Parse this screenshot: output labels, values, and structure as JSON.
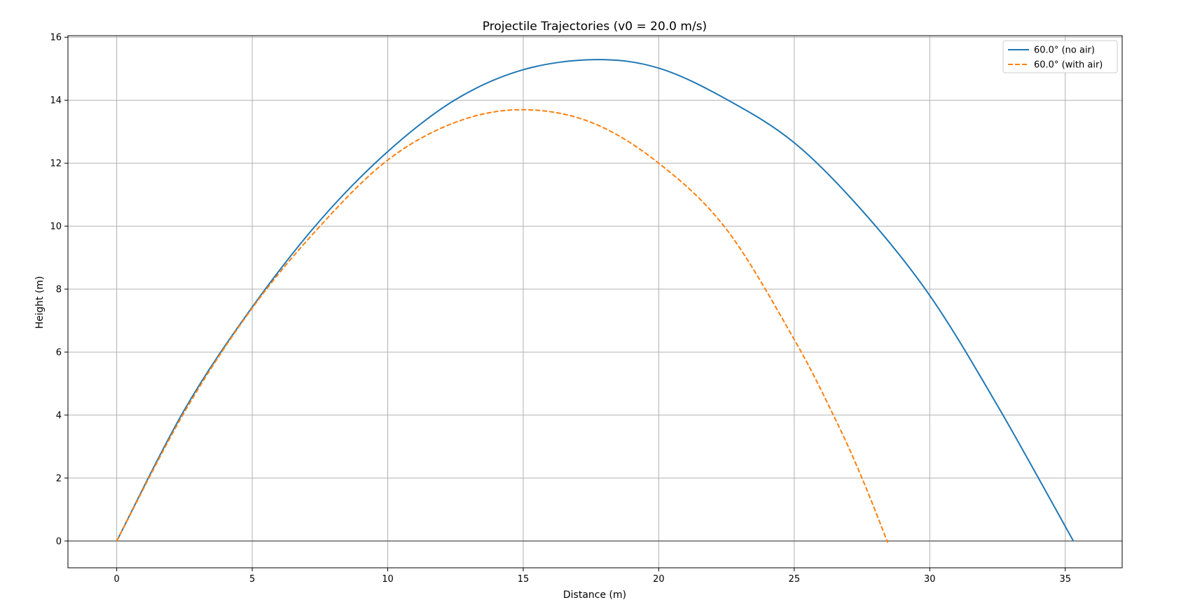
{
  "chart_data": {
    "type": "line",
    "title": "Projectile Trajectories (v0 = 20.0 m/s)",
    "xlabel": "Distance (m)",
    "ylabel": "Height (m)",
    "xlim": [
      -1.8,
      37.1
    ],
    "ylim": [
      -0.85,
      16.05
    ],
    "xticks": [
      0,
      5,
      10,
      15,
      20,
      25,
      30,
      35
    ],
    "yticks": [
      0,
      2,
      4,
      6,
      8,
      10,
      12,
      14,
      16
    ],
    "grid": true,
    "legend_position": "top-right",
    "reference_line_y": 0,
    "series": [
      {
        "name": "60.0° (no air)",
        "color": "#1f77b4",
        "style": "solid",
        "x": [
          0,
          2.5,
          5,
          7.5,
          10,
          12.5,
          15,
          17.66,
          20,
          22.5,
          25,
          27.5,
          30,
          32.5,
          35.3
        ],
        "y": [
          0,
          4.17,
          7.43,
          10.18,
          12.37,
          14.02,
          14.97,
          15.29,
          15.02,
          14.03,
          12.65,
          10.5,
          7.8,
          4.3,
          0
        ]
      },
      {
        "name": "60.0° (with air)",
        "color": "#ff7f0e",
        "style": "dashed",
        "x": [
          0,
          2.5,
          5,
          7.5,
          10,
          12.5,
          14.95,
          17.5,
          20,
          22.5,
          25,
          26.5,
          27.5,
          28.45
        ],
        "y": [
          0,
          4.1,
          7.4,
          10.0,
          12.1,
          13.3,
          13.7,
          13.3,
          12.0,
          9.9,
          6.4,
          3.9,
          2.0,
          -0.05
        ]
      }
    ]
  }
}
